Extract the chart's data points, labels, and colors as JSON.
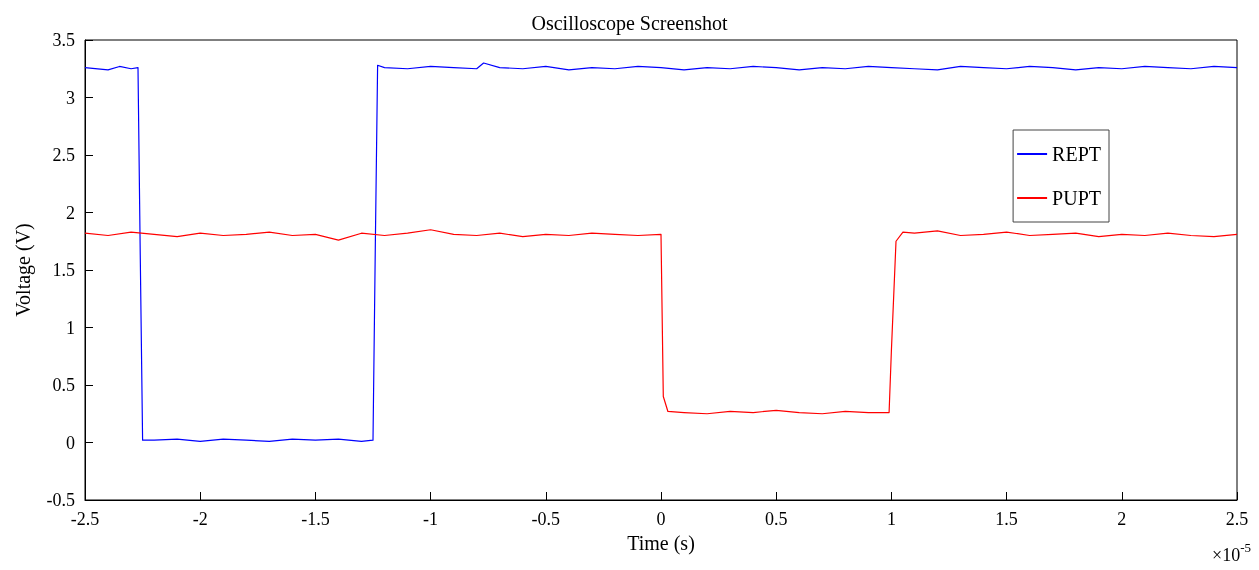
{
  "chart_data": {
    "type": "line",
    "title": "Oscilloscope Screenshot",
    "xlabel": "Time (s)",
    "ylabel": "Voltage (V)",
    "annotations": [
      "×10$^{-5}$"
    ],
    "xlim": [
      -2.5,
      2.5
    ],
    "xticks": [
      -2.5,
      -2,
      -1.5,
      -1,
      -0.5,
      0,
      0.5,
      1,
      1.5,
      2,
      2.5
    ],
    "ylim": [
      -0.5,
      3.5
    ],
    "yticks": [
      -0.5,
      0,
      0.5,
      1,
      1.5,
      2,
      2.5,
      3,
      3.5
    ],
    "grid": false,
    "legend": "top right",
    "marker": "none",
    "line_style": "solid",
    "series": [
      {
        "name": "REPT",
        "color": "#0000ff",
        "x": [
          -2.5,
          -2.4,
          -2.35,
          -2.3,
          -2.27,
          -2.26,
          -2.25,
          -2.2,
          -2.1,
          -2.0,
          -1.9,
          -1.8,
          -1.7,
          -1.6,
          -1.5,
          -1.4,
          -1.3,
          -1.25,
          -1.24,
          -1.23,
          -1.2,
          -1.1,
          -1.0,
          -0.9,
          -0.8,
          -0.77,
          -0.7,
          -0.6,
          -0.5,
          -0.4,
          -0.3,
          -0.2,
          -0.1,
          0,
          0.1,
          0.2,
          0.3,
          0.4,
          0.5,
          0.6,
          0.7,
          0.8,
          0.9,
          1.0,
          1.1,
          1.2,
          1.3,
          1.4,
          1.5,
          1.6,
          1.7,
          1.8,
          1.9,
          2.0,
          2.1,
          2.2,
          2.3,
          2.4,
          2.5
        ],
        "values": [
          3.26,
          3.24,
          3.27,
          3.25,
          3.26,
          1.6,
          0.02,
          0.02,
          0.03,
          0.01,
          0.03,
          0.02,
          0.01,
          0.03,
          0.02,
          0.03,
          0.01,
          0.02,
          1.7,
          3.28,
          3.26,
          3.25,
          3.27,
          3.26,
          3.25,
          3.3,
          3.26,
          3.25,
          3.27,
          3.24,
          3.26,
          3.25,
          3.27,
          3.26,
          3.24,
          3.26,
          3.25,
          3.27,
          3.26,
          3.24,
          3.26,
          3.25,
          3.27,
          3.26,
          3.25,
          3.24,
          3.27,
          3.26,
          3.25,
          3.27,
          3.26,
          3.24,
          3.26,
          3.25,
          3.27,
          3.26,
          3.25,
          3.27,
          3.26
        ]
      },
      {
        "name": "PUPT",
        "color": "#ff0000",
        "x": [
          -2.5,
          -2.4,
          -2.3,
          -2.2,
          -2.1,
          -2.0,
          -1.9,
          -1.8,
          -1.7,
          -1.6,
          -1.5,
          -1.4,
          -1.3,
          -1.2,
          -1.1,
          -1.0,
          -0.9,
          -0.8,
          -0.7,
          -0.6,
          -0.5,
          -0.4,
          -0.3,
          -0.2,
          -0.1,
          0,
          0.01,
          0.03,
          0.1,
          0.2,
          0.3,
          0.4,
          0.5,
          0.6,
          0.7,
          0.8,
          0.9,
          0.99,
          1.0,
          1.02,
          1.05,
          1.1,
          1.2,
          1.3,
          1.4,
          1.5,
          1.6,
          1.7,
          1.8,
          1.9,
          2.0,
          2.1,
          2.2,
          2.3,
          2.4,
          2.5
        ],
        "values": [
          1.82,
          1.8,
          1.83,
          1.81,
          1.79,
          1.82,
          1.8,
          1.81,
          1.83,
          1.8,
          1.81,
          1.76,
          1.82,
          1.8,
          1.82,
          1.85,
          1.81,
          1.8,
          1.82,
          1.79,
          1.81,
          1.8,
          1.82,
          1.81,
          1.8,
          1.81,
          0.4,
          0.27,
          0.26,
          0.25,
          0.27,
          0.26,
          0.28,
          0.26,
          0.25,
          0.27,
          0.26,
          0.26,
          0.8,
          1.75,
          1.83,
          1.82,
          1.84,
          1.8,
          1.81,
          1.83,
          1.8,
          1.81,
          1.82,
          1.79,
          1.81,
          1.8,
          1.82,
          1.8,
          1.79,
          1.81
        ]
      }
    ]
  }
}
